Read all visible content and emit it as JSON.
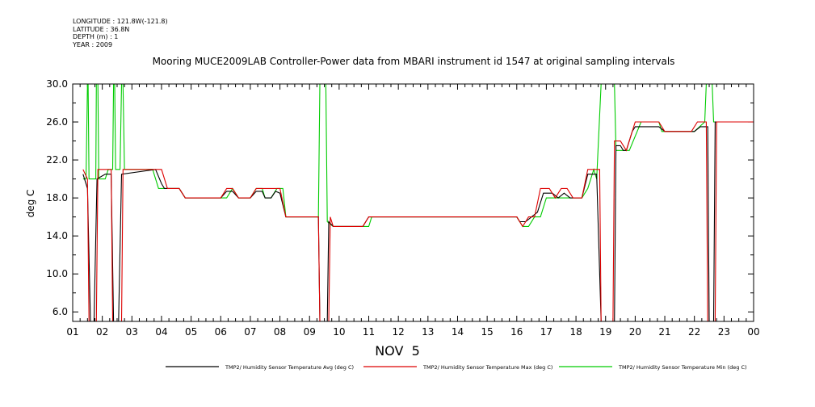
{
  "meta": {
    "longitude": "LONGITUDE : 121.8W(-121.8)",
    "latitude": "LATITUDE : 36.8N",
    "depth": "DEPTH (m) : 1",
    "year": "YEAR : 2009"
  },
  "chart_data": {
    "type": "line",
    "title": "Mooring MUCE2009LAB Controller-Power data from MBARI instrument id 1547 at original sampling intervals",
    "xlabel": "NOV  5",
    "ylabel": "deg C",
    "xlim": [
      1,
      24
    ],
    "ylim": [
      5,
      30
    ],
    "x_ticks": [
      "01",
      "02",
      "03",
      "04",
      "05",
      "06",
      "07",
      "08",
      "09",
      "10",
      "11",
      "12",
      "13",
      "14",
      "15",
      "16",
      "17",
      "18",
      "19",
      "20",
      "21",
      "22",
      "23",
      "00"
    ],
    "y_ticks": [
      "6.0",
      "10.0",
      "14.0",
      "18.0",
      "22.0",
      "26.0",
      "30.0"
    ],
    "y_tick_values": [
      6,
      10,
      14,
      18,
      22,
      26,
      30
    ],
    "legend_position": "bottom",
    "series": [
      {
        "name": "TMP2/ Humidity Sensor Temperature Avg (deg C)",
        "color": "#000000",
        "points": [
          [
            1.35,
            20.5
          ],
          [
            1.5,
            19
          ],
          [
            1.6,
            5
          ],
          [
            1.72,
            5
          ],
          [
            1.82,
            20
          ],
          [
            2.1,
            20.5
          ],
          [
            2.3,
            20.5
          ],
          [
            2.38,
            5
          ],
          [
            2.55,
            5
          ],
          [
            2.65,
            20.5
          ],
          [
            3.8,
            21
          ],
          [
            4.0,
            19.5
          ],
          [
            4.1,
            19
          ],
          [
            4.6,
            19
          ],
          [
            4.8,
            18
          ],
          [
            6.0,
            18
          ],
          [
            6.2,
            18.7
          ],
          [
            6.4,
            18.7
          ],
          [
            6.6,
            18
          ],
          [
            7.0,
            18
          ],
          [
            7.2,
            18.7
          ],
          [
            7.4,
            18.7
          ],
          [
            7.5,
            18
          ],
          [
            7.7,
            18
          ],
          [
            7.85,
            18.7
          ],
          [
            8.0,
            18.5
          ],
          [
            8.2,
            16
          ],
          [
            9.3,
            16
          ],
          [
            9.35,
            5
          ],
          [
            9.6,
            5
          ],
          [
            9.65,
            15.5
          ],
          [
            9.8,
            15
          ],
          [
            10.8,
            15
          ],
          [
            11.0,
            16
          ],
          [
            16.0,
            16
          ],
          [
            16.1,
            15.5
          ],
          [
            16.3,
            15.5
          ],
          [
            16.5,
            16
          ],
          [
            16.7,
            16.5
          ],
          [
            16.9,
            18.5
          ],
          [
            17.2,
            18.5
          ],
          [
            17.4,
            18
          ],
          [
            17.6,
            18.5
          ],
          [
            17.8,
            18
          ],
          [
            18.2,
            18
          ],
          [
            18.4,
            20.5
          ],
          [
            18.7,
            20.5
          ],
          [
            18.85,
            5
          ],
          [
            19.3,
            5
          ],
          [
            19.35,
            23.5
          ],
          [
            19.5,
            23.5
          ],
          [
            19.6,
            23
          ],
          [
            19.7,
            23
          ],
          [
            19.9,
            25
          ],
          [
            20.0,
            25.5
          ],
          [
            20.2,
            25.5
          ],
          [
            20.5,
            25.5
          ],
          [
            20.8,
            25.5
          ],
          [
            21.0,
            25
          ],
          [
            22.0,
            25
          ],
          [
            22.2,
            25.5
          ],
          [
            22.45,
            25.5
          ],
          [
            22.5,
            5
          ],
          [
            22.65,
            5
          ],
          [
            22.7,
            26
          ],
          [
            24.0,
            26
          ]
        ]
      },
      {
        "name": "TMP2/ Humidity Sensor Temperature Max (deg C)",
        "color": "#dd0000",
        "points": [
          [
            1.35,
            21
          ],
          [
            1.5,
            20
          ],
          [
            1.55,
            5
          ],
          [
            1.8,
            5
          ],
          [
            1.85,
            21
          ],
          [
            2.3,
            21
          ],
          [
            2.35,
            5
          ],
          [
            2.65,
            5
          ],
          [
            2.7,
            21
          ],
          [
            3.7,
            21
          ],
          [
            4.0,
            21
          ],
          [
            4.2,
            19
          ],
          [
            4.6,
            19
          ],
          [
            4.8,
            18
          ],
          [
            6.0,
            18
          ],
          [
            6.2,
            19
          ],
          [
            6.4,
            19
          ],
          [
            6.6,
            18
          ],
          [
            7.0,
            18
          ],
          [
            7.2,
            19
          ],
          [
            7.5,
            19
          ],
          [
            7.7,
            19
          ],
          [
            7.9,
            19
          ],
          [
            8.0,
            19
          ],
          [
            8.2,
            16
          ],
          [
            9.3,
            16
          ],
          [
            9.35,
            5
          ],
          [
            9.65,
            5
          ],
          [
            9.7,
            16
          ],
          [
            9.8,
            15
          ],
          [
            10.8,
            15
          ],
          [
            11.0,
            16
          ],
          [
            16.0,
            16
          ],
          [
            16.2,
            15
          ],
          [
            16.4,
            16
          ],
          [
            16.6,
            16
          ],
          [
            16.8,
            19
          ],
          [
            17.1,
            19
          ],
          [
            17.3,
            18
          ],
          [
            17.5,
            19
          ],
          [
            17.7,
            19
          ],
          [
            17.9,
            18
          ],
          [
            18.2,
            18
          ],
          [
            18.4,
            21
          ],
          [
            18.8,
            21
          ],
          [
            18.85,
            5
          ],
          [
            19.25,
            5
          ],
          [
            19.3,
            24
          ],
          [
            19.5,
            24
          ],
          [
            19.7,
            23
          ],
          [
            20.0,
            26
          ],
          [
            20.8,
            26
          ],
          [
            21.0,
            25
          ],
          [
            21.9,
            25
          ],
          [
            22.1,
            26
          ],
          [
            22.4,
            26
          ],
          [
            22.45,
            5
          ],
          [
            22.7,
            5
          ],
          [
            22.75,
            26
          ],
          [
            24.0,
            26
          ]
        ]
      },
      {
        "name": "TMP2/ Humidity Sensor Temperature Min (deg C)",
        "color": "#00cc00",
        "points": [
          [
            1.35,
            20
          ],
          [
            1.45,
            20
          ],
          [
            1.5,
            30
          ],
          [
            1.52,
            30
          ],
          [
            1.55,
            20
          ],
          [
            1.78,
            20
          ],
          [
            1.8,
            30
          ],
          [
            1.85,
            30
          ],
          [
            1.88,
            20
          ],
          [
            2.1,
            20
          ],
          [
            2.2,
            21
          ],
          [
            2.35,
            21
          ],
          [
            2.38,
            30
          ],
          [
            2.42,
            30
          ],
          [
            2.45,
            21
          ],
          [
            2.6,
            21
          ],
          [
            2.65,
            30
          ],
          [
            2.7,
            30
          ],
          [
            2.75,
            21
          ],
          [
            3.7,
            21
          ],
          [
            3.9,
            19
          ],
          [
            4.6,
            19
          ],
          [
            4.8,
            18
          ],
          [
            6.2,
            18
          ],
          [
            6.4,
            19
          ],
          [
            6.6,
            18
          ],
          [
            7.0,
            18
          ],
          [
            7.2,
            19
          ],
          [
            7.4,
            19
          ],
          [
            7.5,
            18
          ],
          [
            7.7,
            18
          ],
          [
            7.9,
            19
          ],
          [
            8.1,
            19
          ],
          [
            8.2,
            16
          ],
          [
            9.3,
            16
          ],
          [
            9.35,
            30
          ],
          [
            9.55,
            30
          ],
          [
            9.6,
            15.5
          ],
          [
            9.8,
            15
          ],
          [
            11.0,
            15
          ],
          [
            11.1,
            16
          ],
          [
            16.0,
            16
          ],
          [
            16.2,
            15
          ],
          [
            16.4,
            15
          ],
          [
            16.6,
            16
          ],
          [
            16.8,
            16
          ],
          [
            17.0,
            18
          ],
          [
            18.2,
            18
          ],
          [
            18.4,
            19
          ],
          [
            18.6,
            21
          ],
          [
            18.7,
            20
          ],
          [
            18.85,
            30
          ],
          [
            19.3,
            30
          ],
          [
            19.35,
            23
          ],
          [
            19.8,
            23
          ],
          [
            20.2,
            26
          ],
          [
            20.8,
            26
          ],
          [
            20.9,
            25
          ],
          [
            22.0,
            25
          ],
          [
            22.35,
            26
          ],
          [
            22.4,
            30
          ],
          [
            22.6,
            30
          ],
          [
            22.65,
            26
          ],
          [
            24.0,
            26
          ]
        ]
      }
    ]
  }
}
